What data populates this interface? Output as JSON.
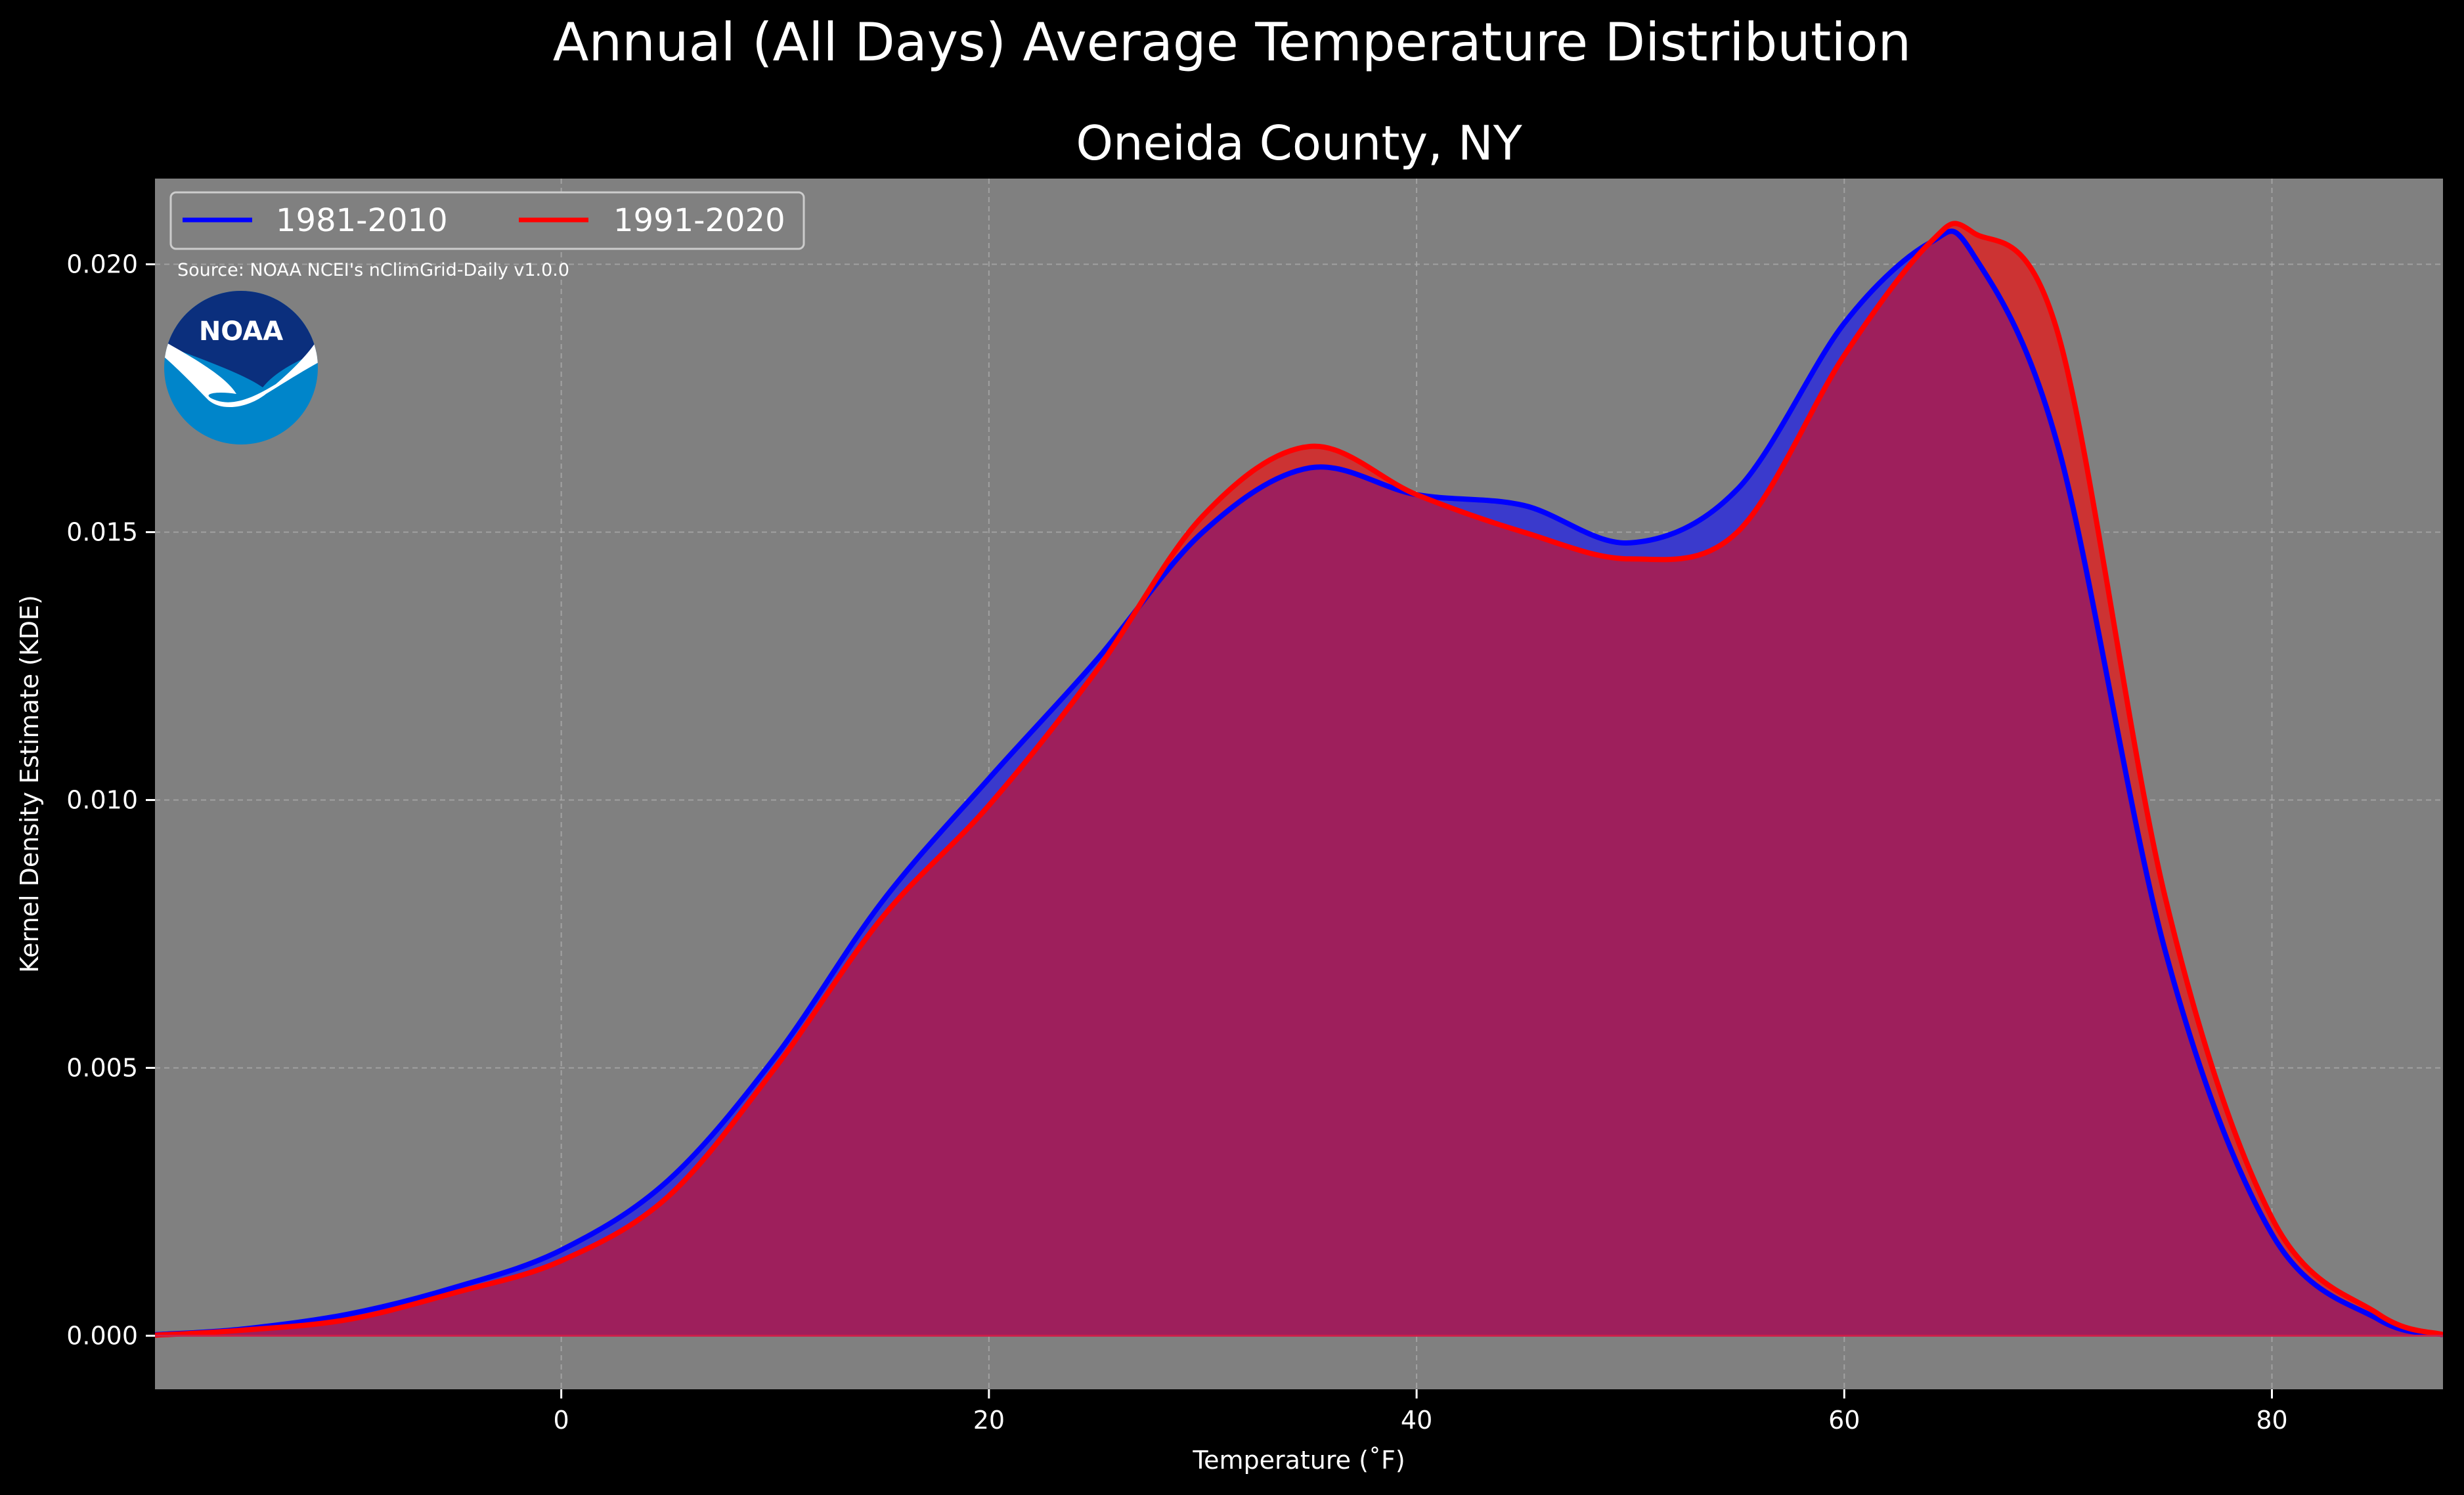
{
  "chart_data": {
    "type": "area",
    "title": "Annual (All Days) Average Temperature Distribution",
    "subtitle": "Oneida County, NY",
    "xlabel": "Temperature (˚F)",
    "ylabel": "Kernel Density Estimate (KDE)",
    "xlim": [
      -19,
      88
    ],
    "ylim": [
      -0.001,
      0.0216
    ],
    "xticks": [
      0,
      20,
      40,
      60,
      80
    ],
    "xtick_labels": [
      "0",
      "20",
      "40",
      "60",
      "80"
    ],
    "yticks": [
      0.0,
      0.005,
      0.01,
      0.015,
      0.02
    ],
    "ytick_labels": [
      "0.000",
      "0.005",
      "0.010",
      "0.015",
      "0.020"
    ],
    "grid": true,
    "legend_position": "top-left",
    "annotation": "Source: NOAA NCEI's nClimGrid-Daily v1.0.0",
    "logo_text": "NOAA",
    "x": [
      -19,
      -15,
      -10,
      -5,
      0,
      5,
      10,
      15,
      20,
      25,
      30,
      35,
      40,
      45,
      50,
      55,
      60,
      64,
      66,
      70,
      75,
      80,
      85,
      88
    ],
    "series": [
      {
        "name": "1981-2010",
        "color": "#0000ff",
        "values": [
          2e-05,
          0.00012,
          0.0004,
          0.0009,
          0.0016,
          0.0029,
          0.0052,
          0.0081,
          0.0104,
          0.0126,
          0.015,
          0.0162,
          0.0157,
          0.0155,
          0.0148,
          0.0158,
          0.0189,
          0.0204,
          0.0202,
          0.0166,
          0.0072,
          0.0019,
          0.0003,
          2e-05
        ]
      },
      {
        "name": "1991-2020",
        "color": "#ff0000",
        "values": [
          1e-05,
          0.0001,
          0.0003,
          0.0008,
          0.0014,
          0.0026,
          0.005,
          0.0078,
          0.0099,
          0.0124,
          0.0153,
          0.0166,
          0.0157,
          0.015,
          0.0145,
          0.015,
          0.0183,
          0.0204,
          0.0206,
          0.0187,
          0.0082,
          0.0022,
          0.0004,
          2e-05
        ]
      }
    ]
  },
  "colors": {
    "background": "#000000",
    "plot_background": "#808080",
    "fill_1981": "#3a3acc",
    "fill_1991": "#cc3333",
    "overlap": "#9e1f5c",
    "noaa_dark": "#0b2f7d",
    "noaa_light": "#0085ca"
  }
}
